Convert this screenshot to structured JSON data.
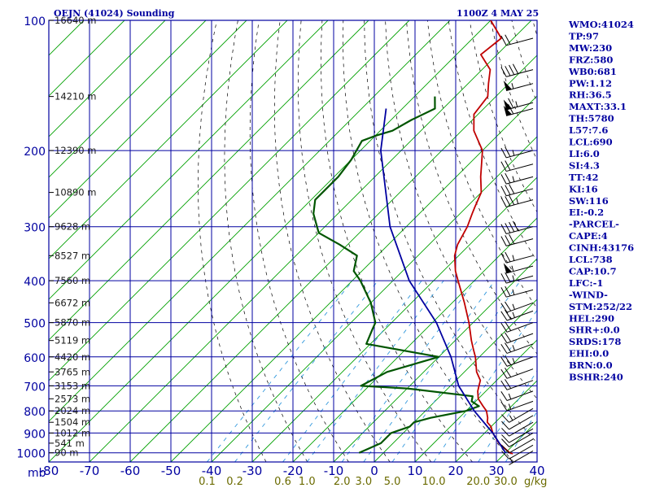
{
  "header": {
    "station": "OEJN (41024) Sounding",
    "time": "1100Z  4 MAY 25"
  },
  "indices": [
    "WMO:41024",
    "TP:97",
    "MW:230",
    "FRZ:580",
    "WB0:681",
    "PW:1.12",
    "RH:36.5",
    "MAXT:33.1",
    "TH:5780",
    "L57:7.6",
    "LCL:690",
    "LI:6.0",
    "SI:4.3",
    "TT:42",
    "KI:16",
    "SW:116",
    "EI:-0.2",
    "-PARCEL-",
    "CAPE:4",
    "CINH:43176",
    "LCL:738",
    "CAP:10.7",
    "LFC:-1",
    "-WIND-",
    "STM:252/22",
    "HEL:290",
    "SHR+:0.0",
    "SRDS:178",
    "EHI:0.0",
    "BRN:0.0",
    "BSHR:240"
  ],
  "colors": {
    "grid": "#0000a0",
    "isotherm": "#00a000",
    "dry_adiabat": "#000000",
    "mixing_ratio": "#3399dd",
    "temperature": "#c00000",
    "dewpoint": "#005500",
    "parcel": "#0000a0",
    "background": "#ffffff"
  },
  "chart_data": {
    "type": "line",
    "pressure_unit_label": "mb",
    "mixing_ratio_unit_label": "g/kg",
    "pressure_levels": [
      100,
      200,
      300,
      400,
      500,
      600,
      700,
      800,
      900,
      1000
    ],
    "pressure_tick_labels": [
      "100",
      "200",
      "300",
      "400",
      "500",
      "600",
      "700",
      "800",
      "900",
      "1000"
    ],
    "ylim": [
      100,
      1050
    ],
    "xlim": [
      -80,
      40
    ],
    "temperature_ticks": [
      "-80",
      "-70",
      "-60",
      "-50",
      "-40",
      "-30",
      "-20",
      "-10",
      "0",
      "10",
      "20",
      "30",
      "40"
    ],
    "mixing_ratio_ticks": [
      {
        "value": 0.1,
        "label": "0.1"
      },
      {
        "value": 0.2,
        "label": "0.2"
      },
      {
        "value": 0.6,
        "label": "0.6"
      },
      {
        "value": 1.0,
        "label": "1.0"
      },
      {
        "value": 2.0,
        "label": "2.0"
      },
      {
        "value": 3.0,
        "label": "3.0"
      },
      {
        "value": 5.0,
        "label": "5.0"
      },
      {
        "value": 10.0,
        "label": "10.0"
      },
      {
        "value": 20.0,
        "label": "20.0"
      },
      {
        "value": 30.0,
        "label": "30.0"
      }
    ],
    "height_labels": [
      {
        "p": 100,
        "label": "16640 m"
      },
      {
        "p": 150,
        "label": "14210 m"
      },
      {
        "p": 200,
        "label": "12390 m"
      },
      {
        "p": 250,
        "label": "10890 m"
      },
      {
        "p": 300,
        "label": "9628 m"
      },
      {
        "p": 350,
        "label": "8527 m"
      },
      {
        "p": 400,
        "label": "7560 m"
      },
      {
        "p": 450,
        "label": "6672 m"
      },
      {
        "p": 500,
        "label": "5870 m"
      },
      {
        "p": 550,
        "label": "5119 m"
      },
      {
        "p": 600,
        "label": "4420 m"
      },
      {
        "p": 650,
        "label": "3765 m"
      },
      {
        "p": 700,
        "label": "3153 m"
      },
      {
        "p": 750,
        "label": "2573 m"
      },
      {
        "p": 800,
        "label": "2024 m"
      },
      {
        "p": 850,
        "label": "1504 m"
      },
      {
        "p": 900,
        "label": "1012 m"
      },
      {
        "p": 950,
        "label": "541 m"
      },
      {
        "p": 1000,
        "label": "90 m"
      }
    ],
    "series": [
      {
        "key": "temperature",
        "points": [
          [
            100,
            -80
          ],
          [
            110,
            -73
          ],
          [
            120,
            -74
          ],
          [
            130,
            -68
          ],
          [
            140,
            -65
          ],
          [
            150,
            -62
          ],
          [
            165,
            -61
          ],
          [
            180,
            -57
          ],
          [
            200,
            -50
          ],
          [
            230,
            -44
          ],
          [
            250,
            -40
          ],
          [
            270,
            -38
          ],
          [
            280,
            -37
          ],
          [
            300,
            -35
          ],
          [
            330,
            -33
          ],
          [
            350,
            -31
          ],
          [
            380,
            -27
          ],
          [
            400,
            -24
          ],
          [
            450,
            -17
          ],
          [
            500,
            -11
          ],
          [
            550,
            -6
          ],
          [
            580,
            -3
          ],
          [
            600,
            -1
          ],
          [
            650,
            3
          ],
          [
            680,
            6
          ],
          [
            700,
            7
          ],
          [
            720,
            8
          ],
          [
            750,
            10
          ],
          [
            780,
            13
          ],
          [
            800,
            15
          ],
          [
            830,
            17
          ],
          [
            850,
            18
          ],
          [
            870,
            20
          ],
          [
            900,
            22
          ],
          [
            950,
            26
          ],
          [
            1000,
            31
          ],
          [
            1005,
            32
          ]
        ]
      },
      {
        "key": "dewpoint",
        "points": [
          [
            150,
            -75
          ],
          [
            160,
            -72
          ],
          [
            170,
            -75
          ],
          [
            180,
            -77
          ],
          [
            185,
            -80
          ],
          [
            190,
            -82
          ],
          [
            210,
            -80
          ],
          [
            230,
            -79
          ],
          [
            260,
            -79
          ],
          [
            280,
            -76
          ],
          [
            310,
            -70
          ],
          [
            330,
            -62
          ],
          [
            350,
            -55
          ],
          [
            380,
            -52
          ],
          [
            400,
            -48
          ],
          [
            450,
            -40
          ],
          [
            500,
            -34
          ],
          [
            520,
            -33
          ],
          [
            560,
            -31
          ],
          [
            600,
            -10
          ],
          [
            650,
            -19
          ],
          [
            700,
            -22
          ],
          [
            710,
            -10
          ],
          [
            740,
            8
          ],
          [
            760,
            9
          ],
          [
            780,
            12
          ],
          [
            800,
            10
          ],
          [
            830,
            3
          ],
          [
            850,
            0
          ],
          [
            870,
            0
          ],
          [
            900,
            -3
          ],
          [
            950,
            -3
          ],
          [
            1000,
            -6
          ]
        ]
      },
      {
        "key": "parcel",
        "points": [
          [
            160,
            -84
          ],
          [
            200,
            -75
          ],
          [
            300,
            -54
          ],
          [
            400,
            -36
          ],
          [
            500,
            -19
          ],
          [
            600,
            -7
          ],
          [
            700,
            2
          ],
          [
            800,
            12
          ],
          [
            900,
            22
          ],
          [
            1000,
            30
          ]
        ]
      }
    ],
    "wind_barbs": [
      {
        "p": 110,
        "dir": 255,
        "speed": 20
      },
      {
        "p": 130,
        "dir": 255,
        "speed": 40
      },
      {
        "p": 140,
        "dir": 255,
        "speed": 55
      },
      {
        "p": 155,
        "dir": 255,
        "speed": 65
      },
      {
        "p": 160,
        "dir": 255,
        "speed": 60
      },
      {
        "p": 200,
        "dir": 255,
        "speed": 25
      },
      {
        "p": 215,
        "dir": 255,
        "speed": 20
      },
      {
        "p": 230,
        "dir": 255,
        "speed": 25
      },
      {
        "p": 245,
        "dir": 255,
        "speed": 30
      },
      {
        "p": 260,
        "dir": 255,
        "speed": 35
      },
      {
        "p": 300,
        "dir": 255,
        "speed": 40
      },
      {
        "p": 320,
        "dir": 255,
        "speed": 30
      },
      {
        "p": 350,
        "dir": 255,
        "speed": 25
      },
      {
        "p": 370,
        "dir": 255,
        "speed": 55
      },
      {
        "p": 390,
        "dir": 255,
        "speed": 25
      },
      {
        "p": 420,
        "dir": 255,
        "speed": 25
      },
      {
        "p": 450,
        "dir": 250,
        "speed": 25
      },
      {
        "p": 470,
        "dir": 250,
        "speed": 25
      },
      {
        "p": 500,
        "dir": 250,
        "speed": 20
      },
      {
        "p": 530,
        "dir": 250,
        "speed": 20
      },
      {
        "p": 560,
        "dir": 250,
        "speed": 25
      },
      {
        "p": 600,
        "dir": 250,
        "speed": 25
      },
      {
        "p": 640,
        "dir": 250,
        "speed": 20
      },
      {
        "p": 680,
        "dir": 250,
        "speed": 20
      },
      {
        "p": 720,
        "dir": 250,
        "speed": 15
      },
      {
        "p": 760,
        "dir": 250,
        "speed": 15
      },
      {
        "p": 790,
        "dir": 240,
        "speed": 15
      },
      {
        "p": 820,
        "dir": 240,
        "speed": 10
      },
      {
        "p": 850,
        "dir": 240,
        "speed": 10
      },
      {
        "p": 880,
        "dir": 240,
        "speed": 10
      },
      {
        "p": 900,
        "dir": 240,
        "speed": 10
      },
      {
        "p": 930,
        "dir": 240,
        "speed": 10
      },
      {
        "p": 960,
        "dir": 240,
        "speed": 10
      },
      {
        "p": 990,
        "dir": 240,
        "speed": 5
      }
    ]
  }
}
